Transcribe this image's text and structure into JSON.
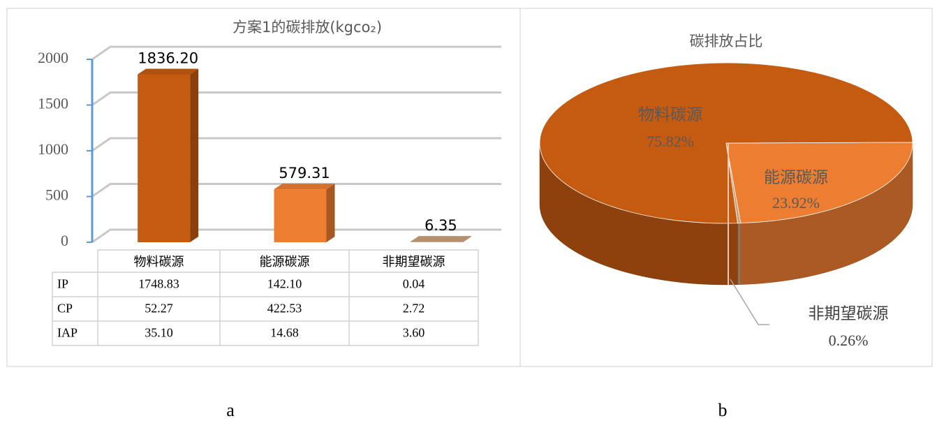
{
  "chart_data": [
    {
      "type": "bar",
      "title": "方案1的碳排放(kgco₂)",
      "caption": "a",
      "categories": [
        "物料碳源",
        "能源碳源",
        "非期望碳源"
      ],
      "values": [
        1836.2,
        579.31,
        6.35
      ],
      "value_labels": [
        "1836.20",
        "579.31",
        "6.35"
      ],
      "colors": [
        "#c55a11",
        "#ed7d31",
        "#c9a07a"
      ],
      "ylim": [
        0,
        2000
      ],
      "yticks": [
        0,
        500,
        1000,
        1500,
        2000
      ],
      "grid": true,
      "table": {
        "rows": [
          {
            "name": "IP",
            "cells": [
              "1748.83",
              "142.10",
              "0.04"
            ]
          },
          {
            "name": "CP",
            "cells": [
              "52.27",
              "422.53",
              "2.72"
            ]
          },
          {
            "name": "IAP",
            "cells": [
              "35.10",
              "14.68",
              "3.60"
            ]
          }
        ]
      }
    },
    {
      "type": "pie",
      "title": "碳排放占比",
      "caption": "b",
      "categories": [
        "能源碳源",
        "非期望碳源",
        "物料碳源"
      ],
      "values": [
        23.92,
        0.26,
        75.82
      ],
      "value_labels": [
        "23.92%",
        "0.26%",
        "75.82%"
      ],
      "colors": [
        "#ed7d31",
        "#c9a07a",
        "#c55a11"
      ]
    }
  ]
}
